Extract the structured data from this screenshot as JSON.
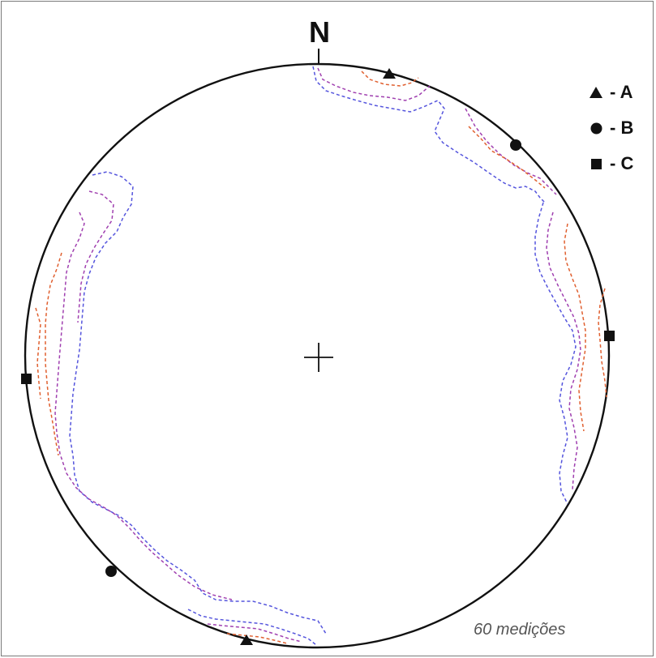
{
  "diagram": {
    "north_label": "N",
    "measurements_label": "60 medições",
    "colors": {
      "outline": "#111111",
      "contour_outer": "#5555dd",
      "contour_middle": "#a040b0",
      "contour_inner": "#e06030"
    }
  },
  "legend": [
    {
      "symbol": "triangle",
      "label": "- A"
    },
    {
      "symbol": "circle",
      "label": "- B"
    },
    {
      "symbol": "square",
      "label": "- C"
    }
  ]
}
